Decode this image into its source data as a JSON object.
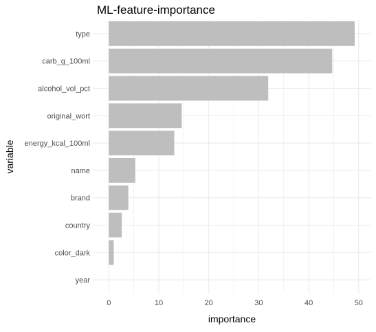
{
  "chart_data": {
    "type": "bar",
    "orientation": "horizontal",
    "title": "ML-feature-importance",
    "xlabel": "importance",
    "ylabel": "variable",
    "categories": [
      "type",
      "carb_g_100ml",
      "alcohol_vol_pct",
      "original_wort",
      "energy_kcal_100ml",
      "name",
      "brand",
      "country",
      "color_dark",
      "year"
    ],
    "values": [
      49.2,
      44.7,
      31.9,
      14.6,
      13.1,
      5.3,
      3.9,
      2.6,
      1.0,
      0
    ],
    "xlim": [
      -3.2,
      52.5
    ],
    "xticks": [
      0,
      10,
      20,
      30,
      40,
      50
    ],
    "grid": true,
    "legend": "none",
    "colors": {
      "bar": "#bebebe",
      "grid": "#ebebeb",
      "axis_text": "#4d4d4d",
      "title": "#000000"
    }
  }
}
